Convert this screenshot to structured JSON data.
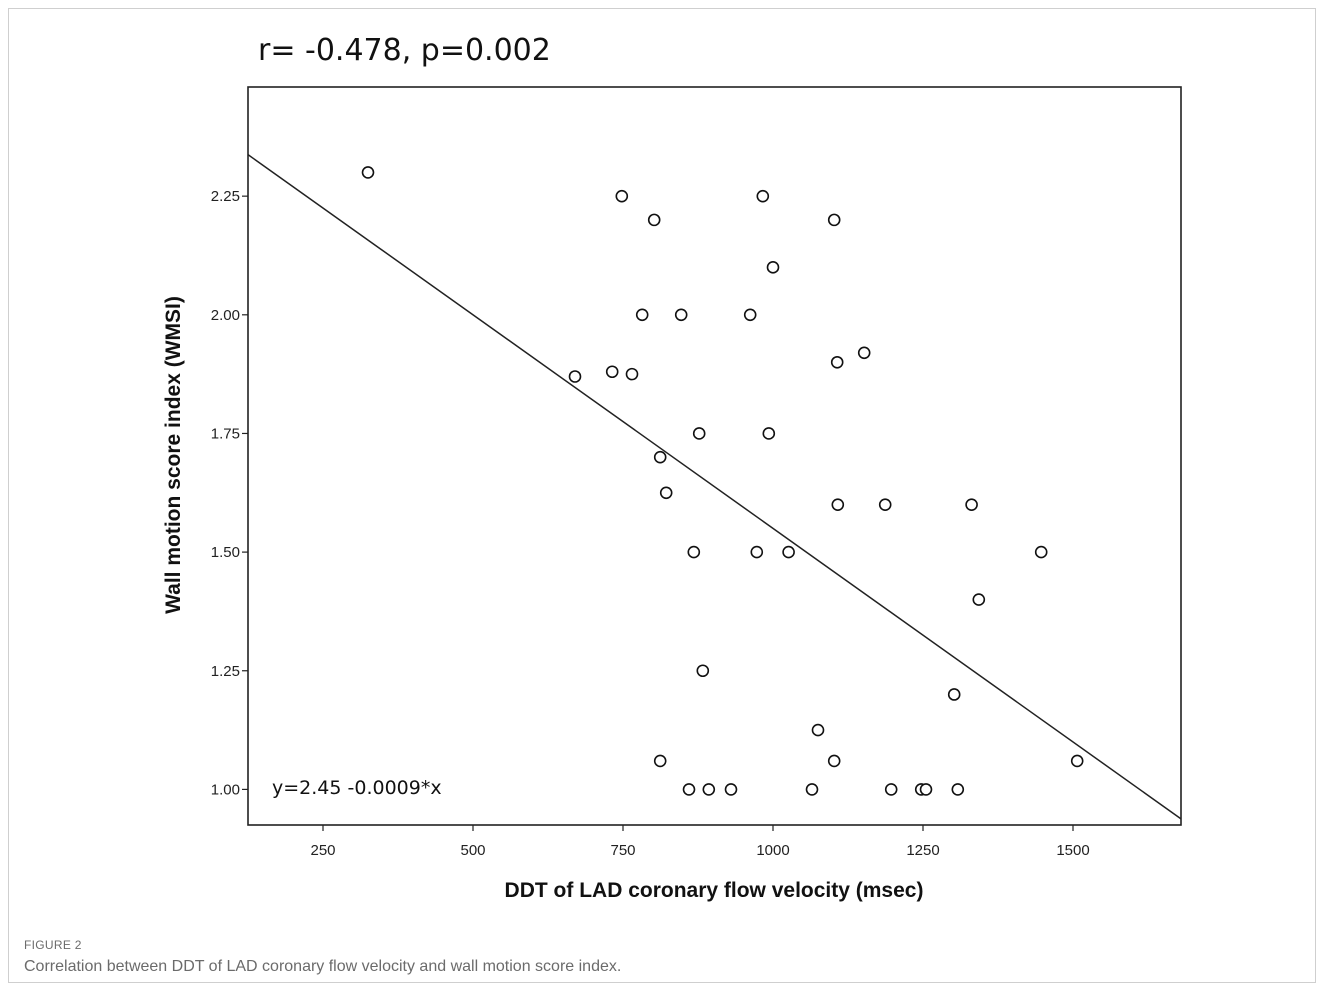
{
  "figure": {
    "label": "FIGURE 2",
    "caption": "Correlation between DDT of LAD coronary flow velocity and wall motion score index."
  },
  "chart_data": {
    "type": "scatter",
    "title": "r= -0.478, p=0.002",
    "equation": "y=2.45 -0.0009*x",
    "xlabel": "DDT of LAD coronary flow velocity (msec)",
    "ylabel": "Wall motion score index (WMSI)",
    "xlim": [
      125,
      1680
    ],
    "ylim": [
      0.925,
      2.48
    ],
    "xticks": [
      250,
      500,
      750,
      1000,
      1250,
      1500
    ],
    "xtick_labels": [
      "250",
      "500",
      "750",
      "1000",
      "1250",
      "1500"
    ],
    "yticks": [
      1.0,
      1.25,
      1.5,
      1.75,
      2.0,
      2.25
    ],
    "ytick_labels": [
      "1.00",
      "1.25",
      "1.50",
      "1.75",
      "2.00",
      "2.25"
    ],
    "grid": false,
    "legend": "none",
    "fit_line": {
      "intercept": 2.45,
      "slope": -0.0009
    },
    "x": [
      325,
      670,
      732,
      748,
      765,
      782,
      802,
      812,
      812,
      822,
      847,
      860,
      868,
      877,
      883,
      893,
      930,
      962,
      973,
      983,
      993,
      1000,
      1026,
      1065,
      1075,
      1102,
      1102,
      1107,
      1108,
      1152,
      1187,
      1197,
      1247,
      1255,
      1302,
      1308,
      1331,
      1343,
      1447,
      1507
    ],
    "y": [
      2.3,
      1.87,
      1.88,
      2.25,
      1.875,
      2.0,
      2.2,
      1.7,
      1.06,
      1.625,
      2.0,
      1.0,
      1.5,
      1.75,
      1.25,
      1.0,
      1.0,
      2.0,
      1.5,
      2.25,
      1.75,
      2.1,
      1.5,
      1.0,
      1.125,
      2.2,
      1.06,
      1.9,
      1.6,
      1.92,
      1.6,
      1.0,
      1.0,
      1.0,
      1.2,
      1.0,
      1.6,
      1.4,
      1.5,
      1.06
    ]
  }
}
